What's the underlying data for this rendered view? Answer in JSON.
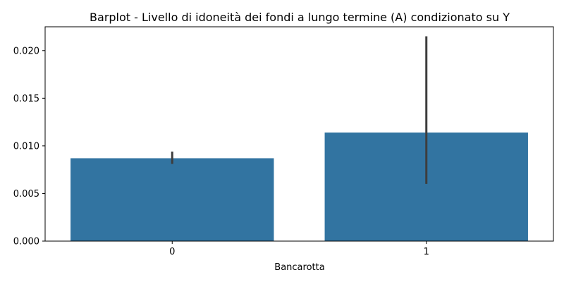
{
  "chart_data": {
    "type": "bar",
    "title": "Barplot - Livello di idoneità dei fondi a lungo termine (A) condizionato su Y",
    "xlabel": "Bancarotta",
    "ylabel": "",
    "categories": [
      "0",
      "1"
    ],
    "values": [
      0.0087,
      0.0114
    ],
    "error_bars": [
      {
        "low": 0.0081,
        "high": 0.0094
      },
      {
        "low": 0.006,
        "high": 0.0215
      }
    ],
    "ylim": [
      0,
      0.0225
    ],
    "yticks": [
      0.0,
      0.005,
      0.01,
      0.015,
      0.02
    ],
    "ytick_labels": [
      "0.000",
      "0.005",
      "0.010",
      "0.015",
      "0.020"
    ],
    "grid": false,
    "bar_color": "#3274a1",
    "errorbar_color": "#3d3d3d"
  }
}
